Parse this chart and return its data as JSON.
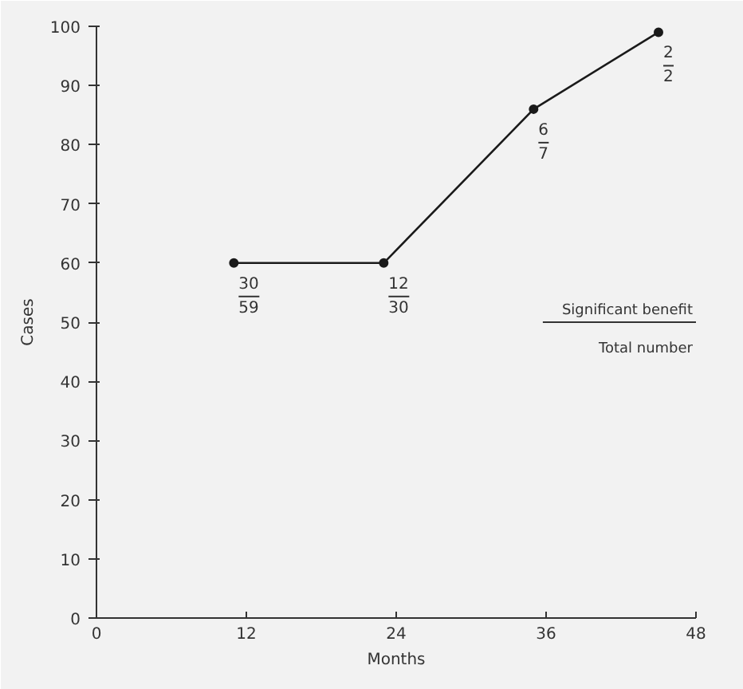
{
  "chart_data": {
    "type": "line",
    "xlabel": "Months",
    "ylabel": "Cases",
    "x": [
      11,
      23,
      35,
      45
    ],
    "series": [
      {
        "color": "#1a1a1a",
        "values": [
          60,
          60,
          86,
          99
        ]
      }
    ],
    "xlim": [
      0,
      48
    ],
    "xticks": [
      0,
      12,
      24,
      36,
      48
    ],
    "ylim": [
      0,
      100
    ],
    "yticks": [
      0,
      10,
      20,
      30,
      40,
      50,
      60,
      70,
      80,
      90,
      100
    ],
    "marker": "circle",
    "line_style": "solid",
    "grid": false,
    "annotations": [
      {
        "text": "30",
        "x": 11,
        "y": 60
      },
      {
        "text": "59",
        "x": 11,
        "y": 60
      },
      {
        "text": "12",
        "x": 23,
        "y": 60
      },
      {
        "text": "30",
        "x": 23,
        "y": 60
      },
      {
        "text": "6",
        "x": 35,
        "y": 86
      },
      {
        "text": "7",
        "x": 35,
        "y": 86
      },
      {
        "text": "2",
        "x": 45,
        "y": 99
      },
      {
        "text": "2",
        "x": 45,
        "y": 99
      },
      "Significant benefit",
      "Total number"
    ]
  }
}
